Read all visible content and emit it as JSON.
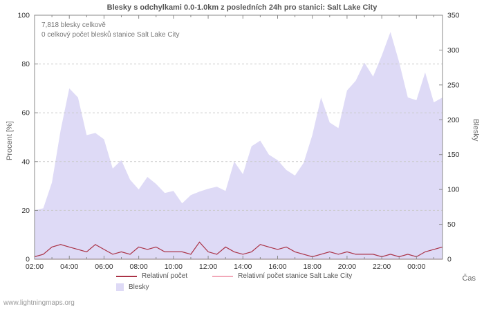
{
  "page": {
    "annotations": {
      "total": "7,818 blesky celkově",
      "station": "0 celkový počet blesků stanice Salt Lake City"
    },
    "footer": "www.lightningmaps.org"
  },
  "chart_data": {
    "type": "area",
    "title": "Blesky s odchylkami 0.0-1.0km z posledních 24h pro stanici: Salt Lake City",
    "xlabel": "Čas",
    "ylabel_left": "Procent  [%]",
    "ylabel_right": "Blesky",
    "grid": true,
    "legend_position": "bottom",
    "x_range": [
      2,
      25.5
    ],
    "y_left_range": [
      0,
      100
    ],
    "y_right_range": [
      0,
      350
    ],
    "x_tick_pos": [
      2,
      4,
      6,
      8,
      10,
      12,
      14,
      16,
      18,
      20,
      22,
      24
    ],
    "x_tick_labels": [
      "02:00",
      "04:00",
      "06:00",
      "08:00",
      "10:00",
      "12:00",
      "14:00",
      "16:00",
      "18:00",
      "20:00",
      "22:00",
      "00:00"
    ],
    "y_left_ticks": [
      0,
      20,
      40,
      60,
      80,
      100
    ],
    "y_right_ticks": [
      0,
      50,
      100,
      150,
      200,
      250,
      300,
      350
    ],
    "x": [
      2,
      2.5,
      3,
      3.5,
      4,
      4.5,
      5,
      5.5,
      6,
      6.5,
      7,
      7.5,
      8,
      8.5,
      9,
      9.5,
      10,
      10.5,
      11,
      11.5,
      12,
      12.5,
      13,
      13.5,
      14,
      14.5,
      15,
      15.5,
      16,
      16.5,
      17,
      17.5,
      18,
      18.5,
      19,
      19.5,
      20,
      20.5,
      21,
      21.5,
      22,
      22.5,
      23,
      23.5,
      24,
      24.5,
      25,
      25.5
    ],
    "series": [
      {
        "name": "Blesky",
        "type": "area",
        "axis": "right",
        "color": "#dedaf6",
        "values": [
          70,
          73,
          110,
          185,
          245,
          232,
          178,
          181,
          172,
          130,
          142,
          114,
          100,
          118,
          108,
          95,
          98,
          80,
          92,
          97,
          101,
          104,
          98,
          140,
          122,
          162,
          170,
          150,
          142,
          128,
          120,
          138,
          178,
          232,
          196,
          188,
          242,
          256,
          282,
          262,
          292,
          326,
          283,
          232,
          228,
          268,
          225,
          232
        ]
      },
      {
        "name": "Relativní počet",
        "type": "line",
        "axis": "left",
        "color": "#aa3246",
        "values": [
          1,
          2,
          5,
          6,
          5,
          4,
          3,
          6,
          4,
          2,
          3,
          2,
          5,
          4,
          5,
          3,
          3,
          3,
          2,
          7,
          3,
          2,
          5,
          3,
          2,
          3,
          6,
          5,
          4,
          5,
          3,
          2,
          1,
          2,
          3,
          2,
          3,
          2,
          2,
          2,
          1,
          2,
          1,
          2,
          1,
          3,
          4,
          5
        ]
      },
      {
        "name": "Relativní počet stanice Salt Lake City",
        "type": "line",
        "axis": "left",
        "color": "#f2a8b8",
        "values": [
          0,
          0,
          0,
          0,
          0,
          0,
          0,
          0,
          0,
          0,
          0,
          0,
          0,
          0,
          0,
          0,
          0,
          0,
          0,
          0,
          0,
          0,
          0,
          0,
          0,
          0,
          0,
          0,
          0,
          0,
          0,
          0,
          0,
          0,
          0,
          0,
          0,
          0,
          0,
          0,
          0,
          0,
          0,
          0,
          0,
          0,
          0,
          0
        ]
      }
    ]
  },
  "legend": {
    "items": [
      {
        "label": "Relativní počet",
        "color": "#aa3246",
        "kind": "line"
      },
      {
        "label": "Relativní počet stanice Salt Lake City",
        "color": "#f2a8b8",
        "kind": "line"
      },
      {
        "label": "Blesky",
        "color": "#dedaf6",
        "kind": "area"
      }
    ]
  }
}
